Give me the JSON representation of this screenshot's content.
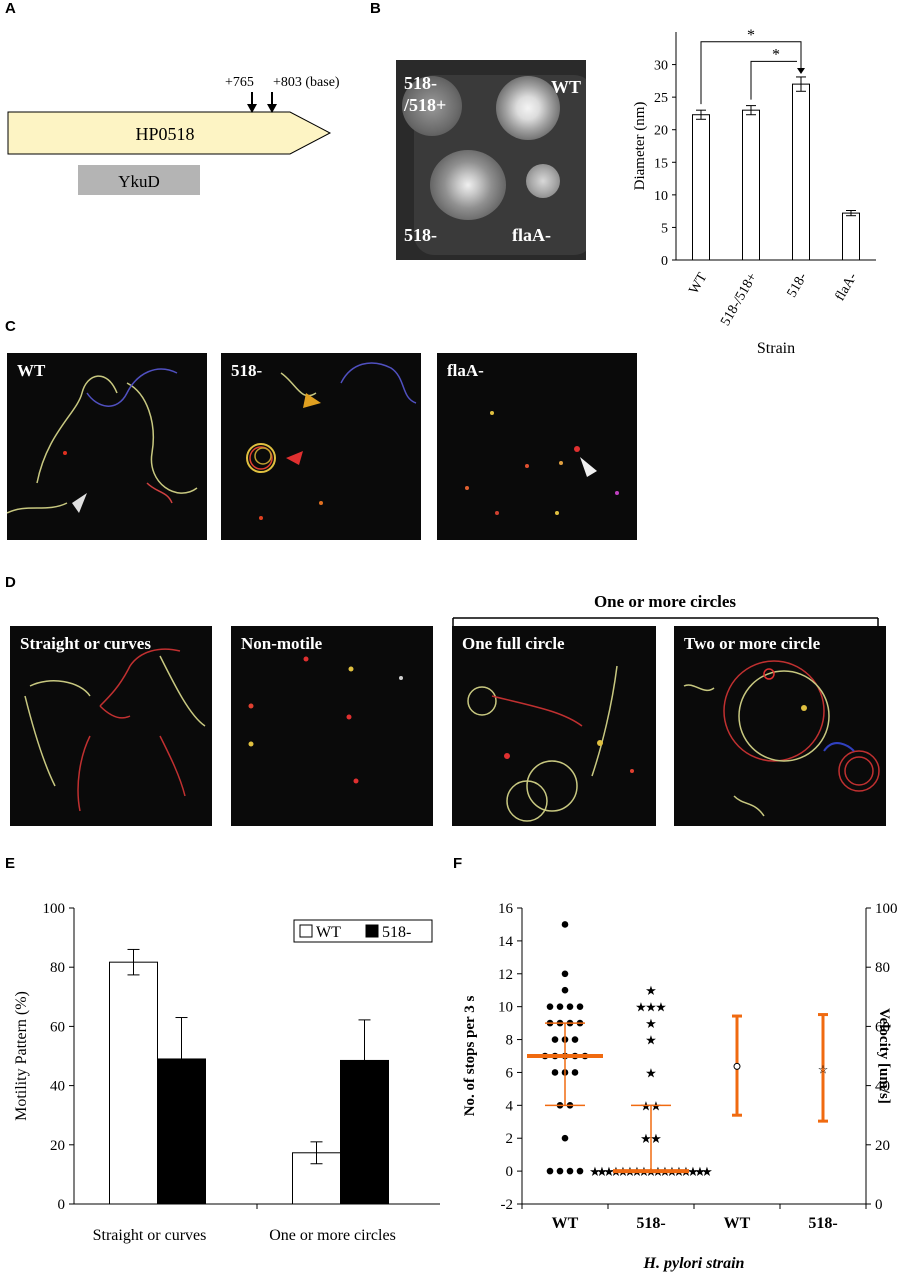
{
  "panel_letters": {
    "a": "A",
    "b": "B",
    "c": "C",
    "d": "D",
    "e": "E",
    "f": "F"
  },
  "panel_a": {
    "gene_label": "HP0518",
    "domain_label": "YkuD",
    "marker_1": "+765",
    "marker_2": "+803 (base)",
    "gene_color": "#fdf4c4",
    "domain_color": "#b4b4b4"
  },
  "panel_b_plate": {
    "wt": "WT",
    "comp_line1": "518-",
    "comp_line2": "/518+",
    "mutant": "518-",
    "flaA": "flaA-"
  },
  "panel_c_labels": [
    "WT",
    "518-",
    "flaA-"
  ],
  "panel_d_header": "One or more circles",
  "panel_d_labels": [
    "Straight or curves",
    "Non-motile",
    "One full circle",
    "Two or more circle"
  ],
  "chart_data": [
    {
      "id": "B",
      "type": "bar",
      "categories": [
        "WT",
        "518-/518+",
        "518-",
        "flaA-"
      ],
      "values": [
        22.3,
        23.0,
        27.0,
        7.2
      ],
      "errors": [
        0.7,
        0.7,
        1.1,
        0.4
      ],
      "ylabel": "Diameter (nm)",
      "xlabel": "Strain",
      "ylim": [
        0,
        35
      ],
      "yticks": [
        0,
        5,
        10,
        15,
        20,
        25,
        30
      ],
      "significance": [
        {
          "pair": [
            "WT",
            "518-"
          ],
          "label": "*"
        },
        {
          "pair": [
            "518-/518+",
            "518-"
          ],
          "label": "*"
        }
      ],
      "bar_fill": "#ffffff"
    },
    {
      "id": "E",
      "type": "bar",
      "categories": [
        "Straight or curves",
        "One or more circles"
      ],
      "series": [
        {
          "name": "WT",
          "values": [
            81.7,
            17.3
          ],
          "errors": [
            4.3,
            3.7
          ],
          "color": "#ffffff"
        },
        {
          "name": "518-",
          "values": [
            49.0,
            48.5
          ],
          "errors": [
            14.0,
            13.7
          ],
          "color": "#000000"
        }
      ],
      "ylabel": "Motility Pattern (%)",
      "ylim": [
        0,
        100
      ],
      "yticks": [
        0,
        20,
        40,
        60,
        80,
        100
      ],
      "legend": "top-right"
    },
    {
      "id": "F",
      "type": "scatter",
      "categories": [
        "WT",
        "518-",
        "WT",
        "518-"
      ],
      "xlabel": "H. pylori strain",
      "ylabel_left": "No. of stops per 3 s",
      "ylabel_right": "Velocity [um/s]",
      "ylim_left": [
        -2,
        16
      ],
      "yticks_left": [
        -2,
        0,
        2,
        4,
        6,
        8,
        10,
        12,
        14,
        16
      ],
      "ylim_right": [
        0,
        100
      ],
      "yticks_right": [
        0,
        20,
        40,
        60,
        80,
        100
      ],
      "stops_wt": [
        15,
        12,
        11,
        10,
        10,
        10,
        10,
        9,
        9,
        9,
        9,
        8,
        8,
        8,
        7,
        7,
        7,
        7,
        7,
        6,
        6,
        6,
        4,
        4,
        2,
        0,
        0,
        0,
        0
      ],
      "stops_wt_median": 7,
      "stops_wt_iqr": [
        4,
        9
      ],
      "stops_518": [
        11,
        10,
        10,
        10,
        9,
        8,
        6,
        4,
        4,
        2,
        2,
        0,
        0,
        0,
        0,
        0,
        0,
        0,
        0,
        0,
        0,
        0,
        0,
        0,
        0,
        0,
        0,
        0
      ],
      "stops_518_median": 0,
      "stops_518_iqr": [
        0,
        4
      ],
      "velocity_wt": {
        "mean": 46.5,
        "low": 30,
        "high": 63.5
      },
      "velocity_518": {
        "mean": 45.5,
        "low": 28,
        "high": 64
      },
      "accent": "#f06a10"
    }
  ]
}
